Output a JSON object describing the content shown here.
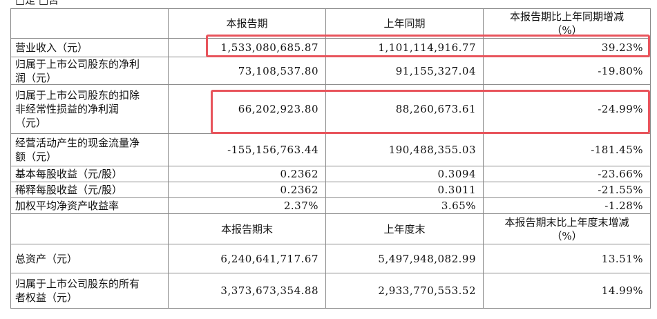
{
  "top_note": "□是 □否",
  "table": {
    "rows": [
      [
        null,
        "本报告期",
        "上年同期",
        "本报告期比上年同期增减\n（%）"
      ],
      [
        "营业收入（元）",
        "1,533,080,685.87",
        "1,101,114,916.77",
        "39.23%"
      ],
      [
        "归属于上市公司股东的净利\n润（元）",
        "73,108,537.80",
        "91,155,327.04",
        "-19.80%"
      ],
      [
        "归属于上市公司股东的扣除\n非经常性损益的净利润\n（元）",
        "66,202,923.80",
        "88,260,673.61",
        "-24.99%"
      ],
      [
        "经营活动产生的现金流量净\n额（元）",
        "-155,156,763.44",
        "190,488,355.03",
        "-181.45%"
      ],
      [
        "基本每股收益（元/股）",
        "0.2362",
        "0.3094",
        "-23.66%"
      ],
      [
        "稀释每股收益（元/股）",
        "0.2362",
        "0.3011",
        "-21.55%"
      ],
      [
        "加权平均净资产收益率",
        "2.37%",
        "3.65%",
        "-1.28%"
      ],
      [
        null,
        "本报告期末",
        "上年度末",
        "本报告期末比上年度末增减\n（%）"
      ],
      [
        "总资产（元）",
        "6,240,641,717.67",
        "5,497,948,082.99",
        "13.51%"
      ],
      [
        "归属于上市公司股东的所有\n者权益（元）",
        "3,373,673,354.88",
        "2,933,770,553.52",
        "14.99%"
      ]
    ]
  }
}
